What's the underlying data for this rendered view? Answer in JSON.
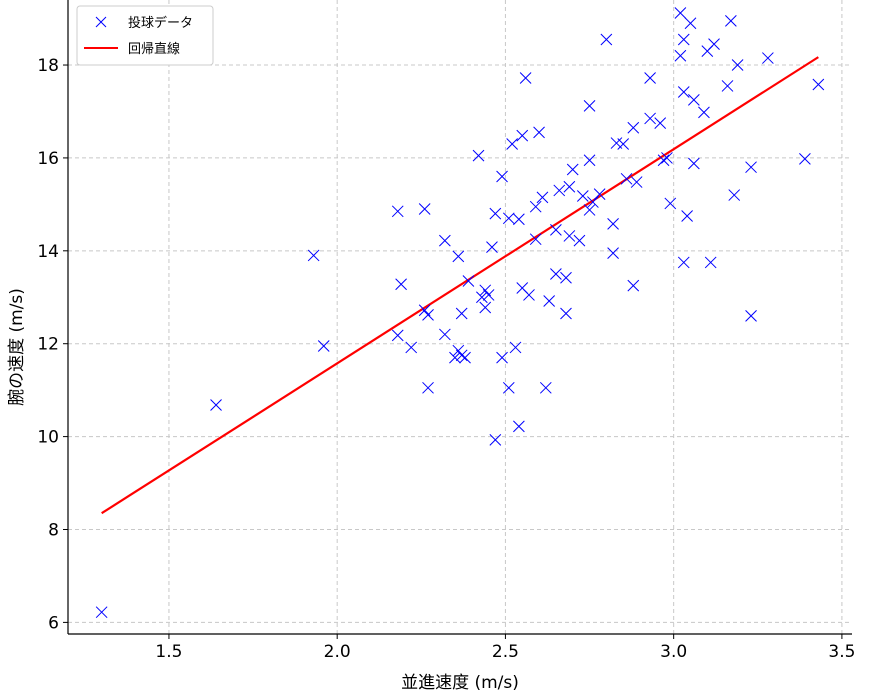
{
  "chart_data": {
    "type": "scatter",
    "title": "",
    "xlabel": "並進速度 (m/s)",
    "ylabel": "腕の速度 (m/s)",
    "xlim": [
      1.2,
      3.53
    ],
    "ylim": [
      5.75,
      19.4
    ],
    "x_ticks": [
      1.5,
      2.0,
      2.5,
      3.0,
      3.5
    ],
    "y_ticks": [
      6,
      8,
      10,
      12,
      14,
      16,
      18
    ],
    "grid": true,
    "legend_position": "top-left",
    "colors": {
      "points": "#0000ff",
      "line": "#ff0000"
    },
    "series": [
      {
        "name": "投球データ",
        "kind": "scatter",
        "marker": "x",
        "points": [
          [
            1.3,
            6.22
          ],
          [
            1.64,
            10.68
          ],
          [
            1.93,
            13.9
          ],
          [
            1.96,
            11.95
          ],
          [
            2.18,
            14.85
          ],
          [
            2.18,
            12.18
          ],
          [
            2.19,
            13.28
          ],
          [
            2.22,
            11.92
          ],
          [
            2.26,
            14.9
          ],
          [
            2.26,
            12.72
          ],
          [
            2.27,
            12.62
          ],
          [
            2.27,
            11.05
          ],
          [
            2.32,
            14.22
          ],
          [
            2.32,
            12.2
          ],
          [
            2.35,
            11.7
          ],
          [
            2.36,
            11.85
          ],
          [
            2.36,
            13.88
          ],
          [
            2.37,
            12.65
          ],
          [
            2.37,
            11.75
          ],
          [
            2.38,
            11.7
          ],
          [
            2.39,
            13.35
          ],
          [
            2.42,
            16.05
          ],
          [
            2.43,
            13.0
          ],
          [
            2.44,
            13.15
          ],
          [
            2.44,
            12.78
          ],
          [
            2.45,
            13.05
          ],
          [
            2.46,
            14.08
          ],
          [
            2.47,
            14.8
          ],
          [
            2.47,
            9.93
          ],
          [
            2.49,
            15.6
          ],
          [
            2.49,
            11.7
          ],
          [
            2.51,
            14.7
          ],
          [
            2.51,
            11.05
          ],
          [
            2.52,
            16.3
          ],
          [
            2.53,
            11.92
          ],
          [
            2.54,
            14.68
          ],
          [
            2.54,
            10.22
          ],
          [
            2.55,
            16.48
          ],
          [
            2.55,
            13.2
          ],
          [
            2.56,
            17.72
          ],
          [
            2.57,
            13.05
          ],
          [
            2.59,
            14.25
          ],
          [
            2.59,
            14.95
          ],
          [
            2.6,
            16.55
          ],
          [
            2.61,
            15.15
          ],
          [
            2.62,
            11.05
          ],
          [
            2.63,
            12.92
          ],
          [
            2.65,
            13.5
          ],
          [
            2.65,
            14.45
          ],
          [
            2.66,
            15.3
          ],
          [
            2.68,
            13.42
          ],
          [
            2.68,
            12.65
          ],
          [
            2.69,
            15.38
          ],
          [
            2.69,
            14.32
          ],
          [
            2.7,
            15.75
          ],
          [
            2.72,
            14.22
          ],
          [
            2.73,
            15.18
          ],
          [
            2.75,
            17.12
          ],
          [
            2.75,
            15.95
          ],
          [
            2.75,
            14.88
          ],
          [
            2.76,
            15.05
          ],
          [
            2.78,
            15.22
          ],
          [
            2.8,
            18.55
          ],
          [
            2.82,
            14.58
          ],
          [
            2.82,
            13.95
          ],
          [
            2.83,
            16.32
          ],
          [
            2.85,
            16.3
          ],
          [
            2.86,
            15.55
          ],
          [
            2.88,
            16.65
          ],
          [
            2.88,
            13.25
          ],
          [
            2.89,
            15.48
          ],
          [
            2.93,
            17.72
          ],
          [
            2.93,
            16.85
          ],
          [
            2.96,
            16.75
          ],
          [
            2.97,
            15.95
          ],
          [
            2.98,
            16.0
          ],
          [
            2.99,
            15.02
          ],
          [
            3.02,
            19.12
          ],
          [
            3.02,
            18.2
          ],
          [
            3.03,
            18.55
          ],
          [
            3.03,
            17.42
          ],
          [
            3.03,
            13.75
          ],
          [
            3.04,
            14.75
          ],
          [
            3.05,
            18.9
          ],
          [
            3.06,
            17.25
          ],
          [
            3.06,
            15.88
          ],
          [
            3.09,
            16.98
          ],
          [
            3.1,
            18.3
          ],
          [
            3.11,
            13.75
          ],
          [
            3.12,
            18.45
          ],
          [
            3.16,
            17.55
          ],
          [
            3.17,
            18.95
          ],
          [
            3.18,
            15.2
          ],
          [
            3.19,
            18.0
          ],
          [
            3.23,
            15.8
          ],
          [
            3.23,
            12.6
          ],
          [
            3.28,
            18.15
          ],
          [
            3.39,
            15.98
          ],
          [
            3.43,
            17.58
          ]
        ]
      },
      {
        "name": "回帰直線",
        "kind": "line",
        "points": [
          [
            1.3,
            8.35
          ],
          [
            3.43,
            18.17
          ]
        ]
      }
    ]
  }
}
